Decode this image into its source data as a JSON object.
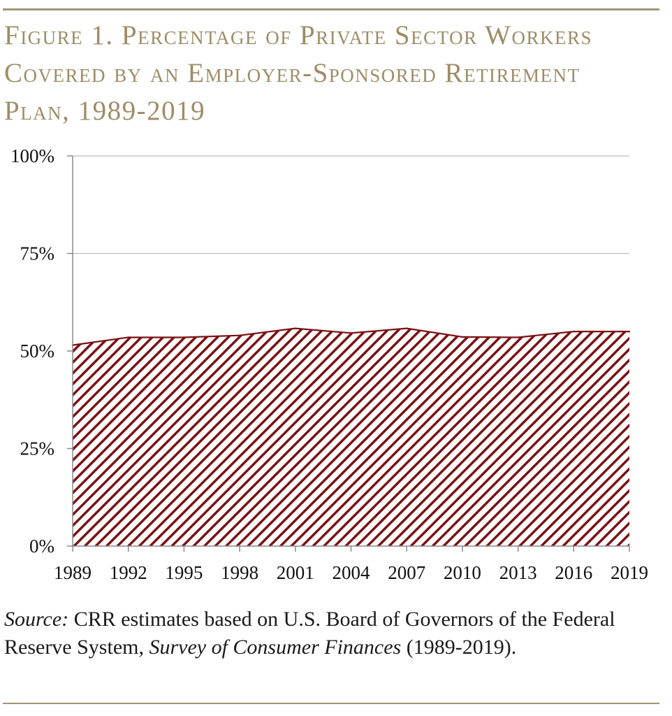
{
  "chart_data": {
    "type": "area",
    "title": "Figure 1. Percentage of Private Sector Workers Covered by an Employer-Sponsored Retirement Plan, 1989-2019",
    "xlabel": "",
    "ylabel": "",
    "x": [
      1989,
      1992,
      1995,
      1998,
      2001,
      2004,
      2007,
      2010,
      2013,
      2016,
      2019
    ],
    "x_tick_labels": [
      "1989",
      "1992",
      "1995",
      "1998",
      "2001",
      "2004",
      "2007",
      "2010",
      "2013",
      "2016",
      "2019"
    ],
    "y_ticks": [
      0,
      25,
      50,
      75,
      100
    ],
    "y_tick_labels": [
      "0%",
      "25%",
      "50%",
      "75%",
      "100%"
    ],
    "ylim": [
      0,
      100
    ],
    "series": [
      {
        "values": [
          51.5,
          53.5,
          53.5,
          54,
          55.8,
          54.6,
          55.8,
          53.6,
          53.5,
          55,
          55
        ]
      }
    ],
    "grid": true,
    "fill_pattern": "diagonal-hatch",
    "fill_color": "#7b1113",
    "hatch_color": "#ffffff"
  },
  "source": {
    "label": "Source:",
    "text_1": " CRR estimates based on U.S. Board of Governors of the Federal Reserve System, ",
    "publication": "Survey of Consumer Finances",
    "text_2": " (1989-2019)."
  }
}
